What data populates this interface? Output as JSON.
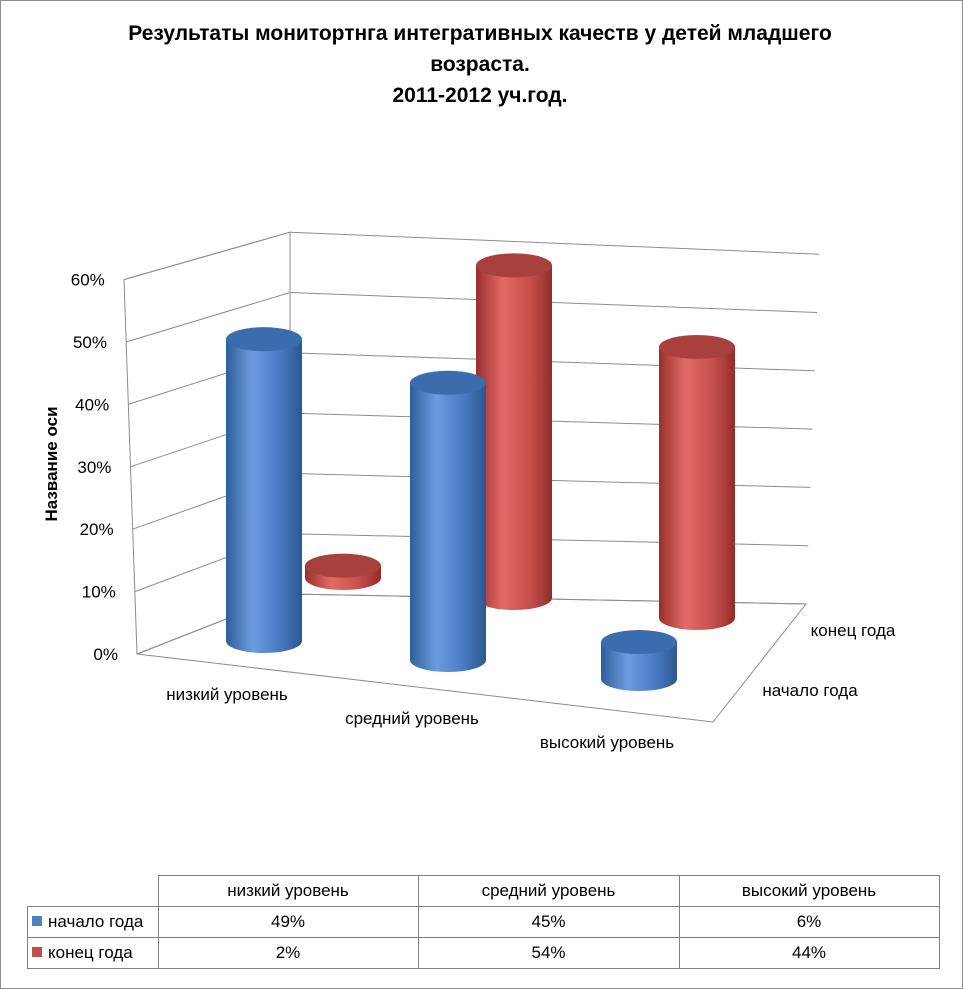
{
  "chart_data": {
    "type": "bar",
    "subtype": "3d-cylinder",
    "title": [
      "Результаты монитортнга интегративных качеств у детей младшего",
      "возраста.",
      "2011-2012 уч.год."
    ],
    "ylabel": "Название оси",
    "ylim": [
      0,
      0.6
    ],
    "yticks": [
      "0%",
      "10%",
      "20%",
      "30%",
      "40%",
      "50%",
      "60%"
    ],
    "categories": [
      "низкий уровень",
      "средний уровень",
      "высокий уровень"
    ],
    "series": [
      {
        "name": "начало года",
        "values": [
          0.49,
          0.45,
          0.06
        ],
        "labels": [
          "49%",
          "45%",
          "6%"
        ],
        "color": "#4f81bd"
      },
      {
        "name": "конец года",
        "values": [
          0.02,
          0.54,
          0.44
        ],
        "labels": [
          "2%",
          "54%",
          "44%"
        ],
        "color": "#c0504d"
      }
    ],
    "depth_labels": [
      "конец года",
      "начало года"
    ],
    "grid": true,
    "data_table": true
  }
}
